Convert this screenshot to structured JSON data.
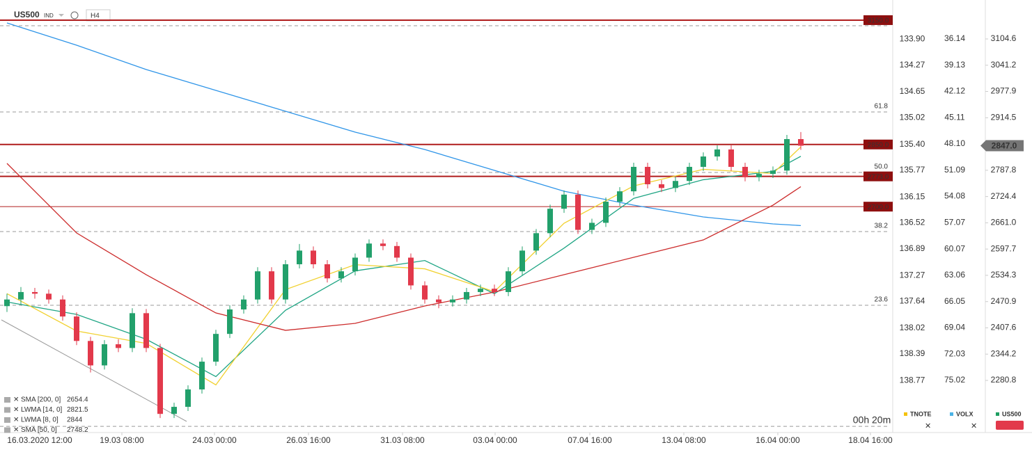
{
  "chart_data": {
    "type": "candlestick",
    "symbol": "US500",
    "symbol_type": "IND",
    "interval": "H4",
    "xlim": [
      -0.5,
      63.5
    ],
    "ylim": [
      2150,
      3173.4
    ],
    "xticks": [
      {
        "value": 2.35,
        "label": "16.03.2020  12:00"
      },
      {
        "value": 8.25,
        "label": "19.03  08:00"
      },
      {
        "value": 14.9,
        "label": "24.03  00:00"
      },
      {
        "value": 21.65,
        "label": "26.03  16:00"
      },
      {
        "value": 28.4,
        "label": "31.03  08:00"
      },
      {
        "value": 35.05,
        "label": "03.04  00:00"
      },
      {
        "value": 41.85,
        "label": "07.04  16:00"
      },
      {
        "value": 48.6,
        "label": "13.04  08:00"
      },
      {
        "value": 55.35,
        "label": "16.04  00:00"
      },
      {
        "value": 62,
        "label": "18.04  16:00"
      }
    ],
    "yticks": [
      3104.6,
      3041.2,
      2977.9,
      2914.5,
      2787.8,
      2724.4,
      {
        "value": 2661,
        "label": "2661.0"
      },
      2597.7,
      2534.3,
      2470.9,
      2407.6,
      2344.2,
      2280.8
    ],
    "tnote_lim": [
      133.49,
      139.54
    ],
    "tnote_ticks": [
      {
        "value": 133.9,
        "label": "133.90"
      },
      134.27,
      134.65,
      135.02,
      {
        "value": 135.4,
        "label": "135.40"
      },
      135.77,
      136.15,
      136.52,
      136.89,
      137.27,
      137.64,
      138.02,
      138.39,
      138.77
    ],
    "volx_lim": [
      32.89,
      81.2
    ],
    "volx_ticks": [
      36.14,
      39.13,
      42.12,
      45.11,
      {
        "value": 48.1,
        "label": "48.10"
      },
      51.09,
      54.08,
      57.07,
      60.07,
      63.06,
      66.05,
      69.04,
      72.03,
      75.02
    ],
    "up_color": "#22a06b",
    "down_color": "#e2394b",
    "open": [
      2460,
      2476,
      2494,
      2490,
      2476,
      2435,
      2376,
      2317,
      2368,
      2359,
      2443,
      2359,
      2200,
      2217,
      2259,
      2326,
      2393,
      2452,
      2476,
      2544,
      2476,
      2561,
      2594,
      2561,
      2527,
      2544,
      2577,
      2611,
      2605,
      2577,
      2510,
      2476,
      2469,
      2476,
      2494,
      2502,
      2494,
      2544,
      2594,
      2636,
      2695,
      2729,
      2644,
      2661,
      2712,
      2737,
      2796,
      2754,
      2745,
      2762,
      2796,
      2821,
      2838,
      2796,
      2771,
      2779,
      2787,
      2863
    ],
    "high": [
      2490,
      2506,
      2504,
      2500,
      2486,
      2445,
      2386,
      2378,
      2380,
      2455,
      2453,
      2369,
      2227,
      2269,
      2336,
      2403,
      2462,
      2486,
      2554,
      2554,
      2571,
      2610,
      2604,
      2571,
      2554,
      2587,
      2621,
      2621,
      2615,
      2587,
      2520,
      2486,
      2486,
      2504,
      2512,
      2512,
      2554,
      2604,
      2646,
      2705,
      2739,
      2739,
      2671,
      2722,
      2747,
      2806,
      2806,
      2764,
      2772,
      2806,
      2831,
      2848,
      2848,
      2806,
      2789,
      2797,
      2873,
      2880
    ],
    "low": [
      2446,
      2464,
      2478,
      2466,
      2425,
      2366,
      2300,
      2307,
      2349,
      2349,
      2349,
      2190,
      2190,
      2207,
      2249,
      2316,
      2383,
      2442,
      2466,
      2466,
      2466,
      2551,
      2551,
      2517,
      2517,
      2534,
      2567,
      2595,
      2567,
      2500,
      2466,
      2455,
      2459,
      2466,
      2484,
      2484,
      2484,
      2534,
      2584,
      2626,
      2685,
      2634,
      2634,
      2651,
      2702,
      2727,
      2744,
      2735,
      2735,
      2752,
      2786,
      2811,
      2786,
      2761,
      2761,
      2769,
      2777,
      2837
    ],
    "close": [
      2476,
      2494,
      2490,
      2476,
      2435,
      2376,
      2317,
      2368,
      2359,
      2443,
      2359,
      2200,
      2217,
      2259,
      2326,
      2393,
      2452,
      2476,
      2544,
      2476,
      2561,
      2594,
      2561,
      2527,
      2544,
      2577,
      2611,
      2605,
      2577,
      2510,
      2476,
      2469,
      2476,
      2494,
      2502,
      2494,
      2544,
      2594,
      2636,
      2695,
      2729,
      2644,
      2661,
      2712,
      2737,
      2796,
      2754,
      2745,
      2762,
      2796,
      2821,
      2838,
      2796,
      2771,
      2779,
      2787,
      2863,
      2847
    ],
    "indicators": [
      {
        "name": "SMA [200,  0]",
        "color": "#2f95e8",
        "x": [
          0,
          5,
          10,
          15,
          20,
          25,
          30,
          35,
          40,
          45,
          50,
          55,
          57
        ],
        "values": [
          3143.2,
          3089.5,
          3030.8,
          2980.5,
          2930.1,
          2879.8,
          2837.8,
          2787.5,
          2737.2,
          2703.6,
          2675.1,
          2658.3,
          2654.4
        ]
      },
      {
        "name": "LWMA [14,  0]",
        "color": "#1fa584",
        "x": [
          0,
          5,
          10,
          15,
          20,
          25,
          30,
          35,
          40,
          45,
          50,
          55,
          57
        ],
        "values": [
          2470,
          2440,
          2380,
          2290,
          2450,
          2545,
          2570,
          2490,
          2600,
          2720,
          2765,
          2785,
          2821.5
        ]
      },
      {
        "name": "LWMA [8,  0]",
        "color": "#f1d130",
        "x": [
          0,
          5,
          10,
          15,
          20,
          25,
          30,
          35,
          40,
          45,
          50,
          55,
          57
        ],
        "values": [
          2490,
          2400,
          2370,
          2270,
          2500,
          2560,
          2550,
          2495,
          2660,
          2750,
          2790,
          2780,
          2844
        ]
      },
      {
        "name": "SMA [50,  0]",
        "color": "#cc2b2b",
        "x": [
          0,
          5,
          10,
          15,
          20,
          25,
          30,
          35,
          40,
          45,
          50,
          55,
          57
        ],
        "values": [
          2804.3,
          2636.5,
          2535.8,
          2443.5,
          2401.6,
          2418.4,
          2460.3,
          2494,
          2535.8,
          2577.8,
          2619.7,
          2703.6,
          2748.2
        ]
      }
    ],
    "levels": [
      {
        "value": 3150,
        "label": "3150.0"
      },
      {
        "value": 2850,
        "label": "2850.0"
      },
      {
        "value": 2773,
        "label": "2773.0"
      },
      {
        "value": 2700,
        "label": "2700.0"
      }
    ],
    "fib": [
      {
        "price": 3136.5
      },
      {
        "level": "61.8",
        "price": 2928.4
      },
      {
        "level": "50.0",
        "price": 2782.4
      },
      {
        "level": "38.2",
        "price": 2639.8
      },
      {
        "level": "23.6",
        "price": 2462
      },
      {
        "price": 2170
      }
    ],
    "current_price": {
      "value": 2847,
      "label": "2847.0"
    },
    "timer": "00h 20m",
    "panels": [
      "TNOTE",
      "VOLX",
      "US500"
    ]
  }
}
